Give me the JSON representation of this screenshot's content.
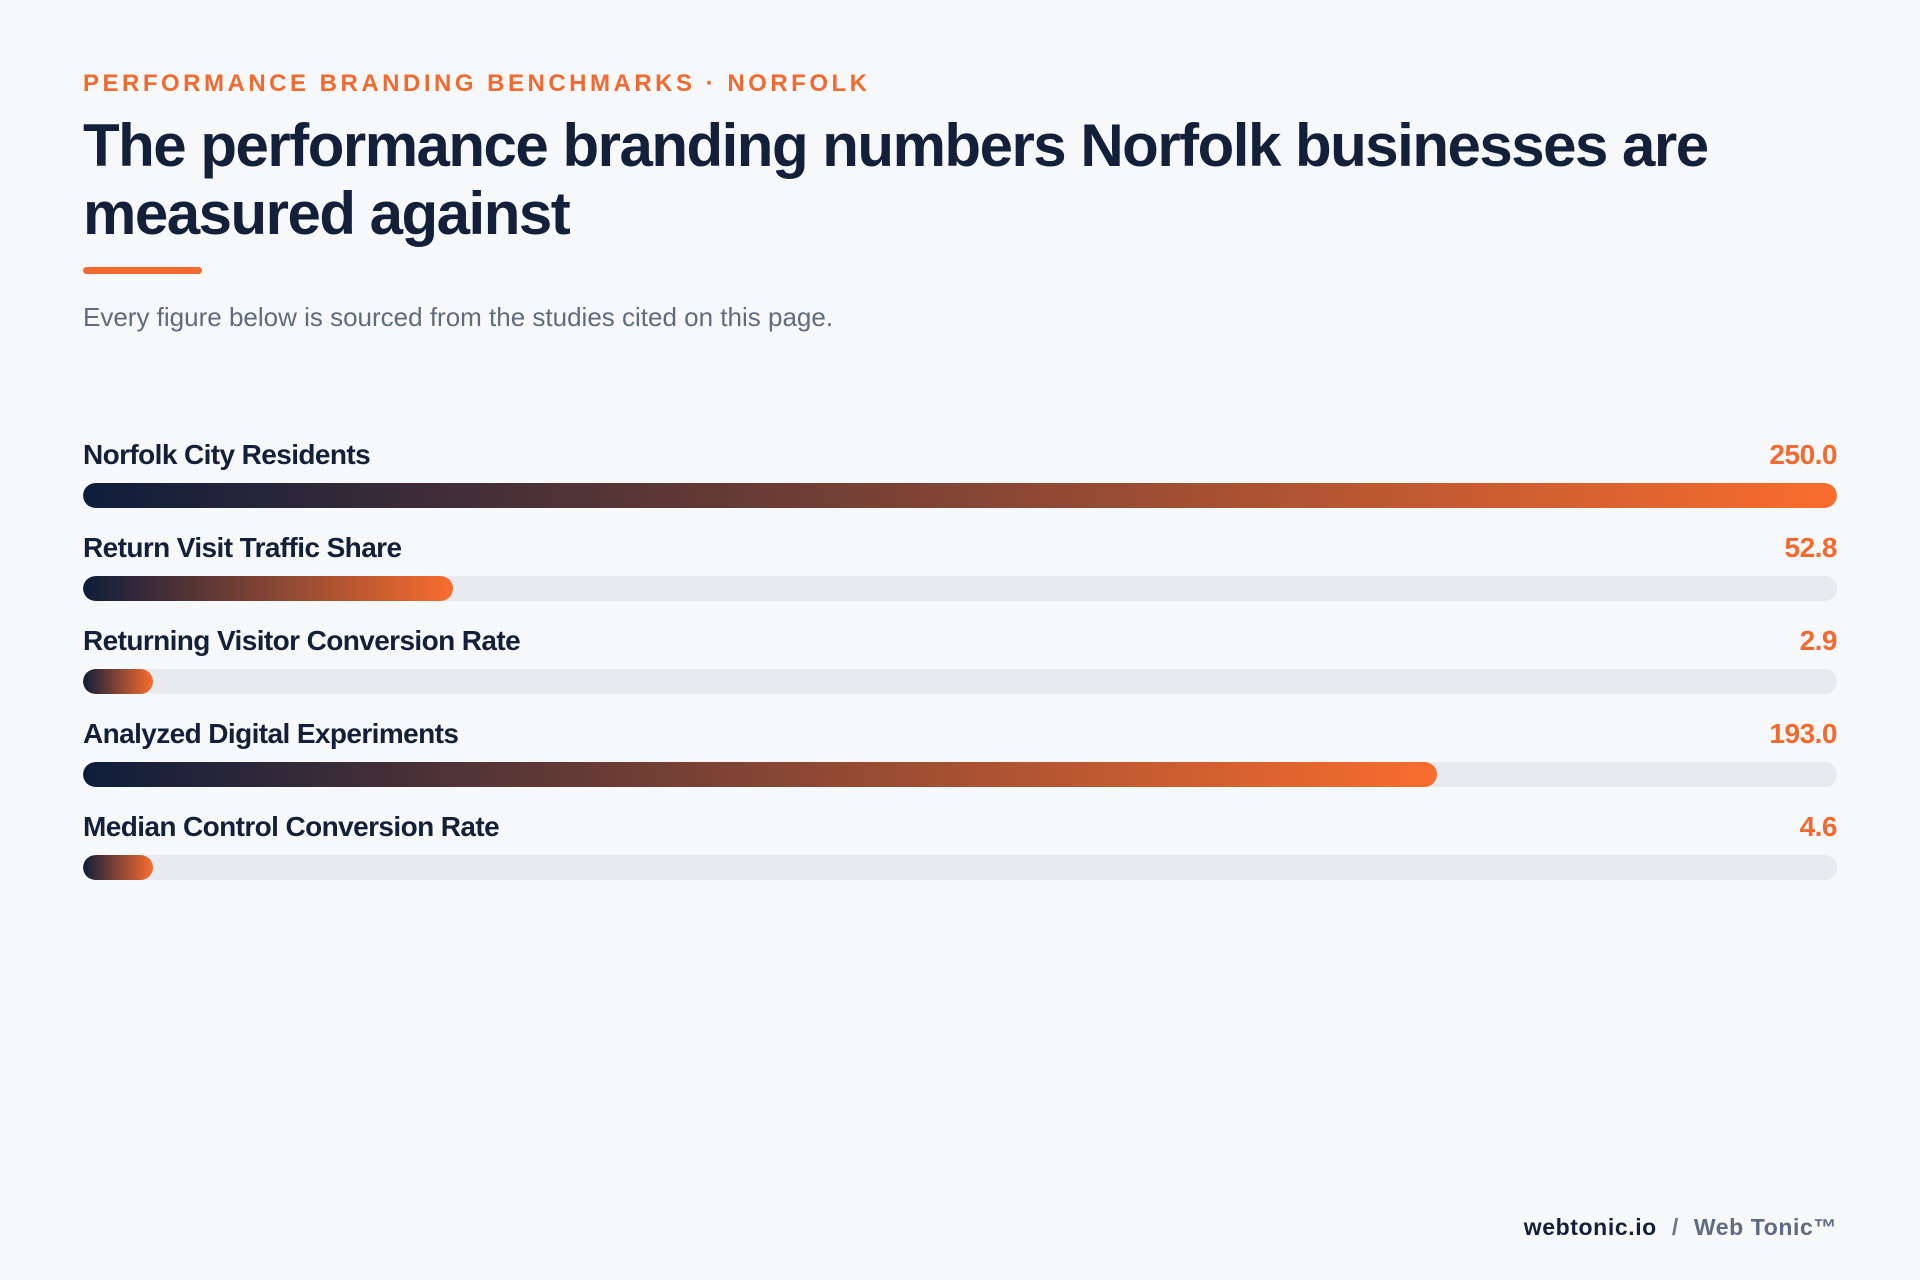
{
  "header": {
    "eyebrow": "PERFORMANCE BRANDING BENCHMARKS · NORFOLK",
    "title": "The performance branding numbers Norfolk businesses are measured against",
    "subtitle": "Every figure below is sourced from the studies cited on this page."
  },
  "colors": {
    "accent": "#f26a30",
    "navy": "#13203a",
    "track": "#e8eaf0",
    "gradient_start": "#0f1d3a",
    "gradient_end": "#f96d2e"
  },
  "chart_data": {
    "type": "bar",
    "orientation": "horizontal",
    "categories": [
      "Norfolk City Residents",
      "Return Visit Traffic Share",
      "Returning Visitor Conversion Rate",
      "Analyzed Digital Experiments",
      "Median Control Conversion Rate"
    ],
    "values": [
      250.0,
      52.8,
      2.9,
      193.0,
      4.6
    ],
    "value_labels": [
      "250.0",
      "52.8",
      "2.9",
      "193.0",
      "4.6"
    ],
    "xlim": [
      0,
      250
    ],
    "grid": false,
    "legend": "none"
  },
  "footer": {
    "domain": "webtonic.io",
    "separator": "/",
    "brand": "Web Tonic™"
  }
}
